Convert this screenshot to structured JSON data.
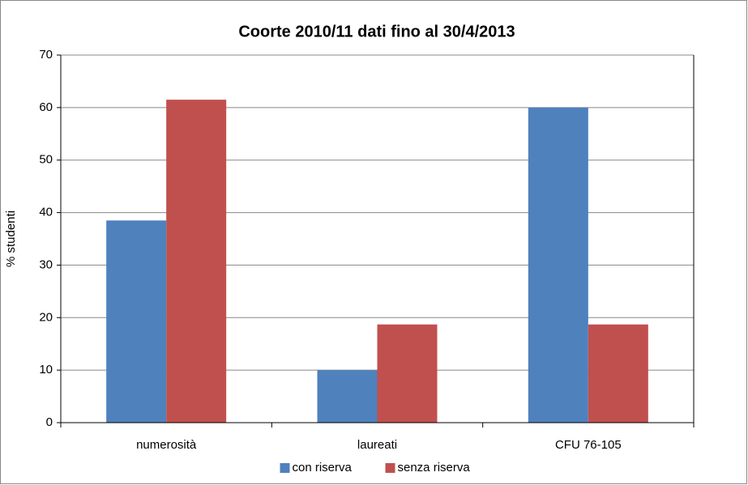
{
  "chart_data": {
    "type": "bar",
    "title": "Coorte 2010/11 dati fino al 30/4/2013",
    "y_axis_label": "% studenti",
    "categories": [
      "numerosità",
      "laureati",
      "CFU 76-105"
    ],
    "series": [
      {
        "name": "con riserva",
        "color": "#4f81bd",
        "values": [
          38.5,
          10,
          60
        ]
      },
      {
        "name": "senza riserva",
        "color": "#c0504d",
        "values": [
          61.5,
          18.7,
          18.7
        ]
      }
    ],
    "ylim": [
      0,
      70
    ],
    "yticks": [
      0,
      10,
      20,
      30,
      40,
      50,
      60,
      70
    ],
    "grid": true,
    "legend": "bottom"
  }
}
